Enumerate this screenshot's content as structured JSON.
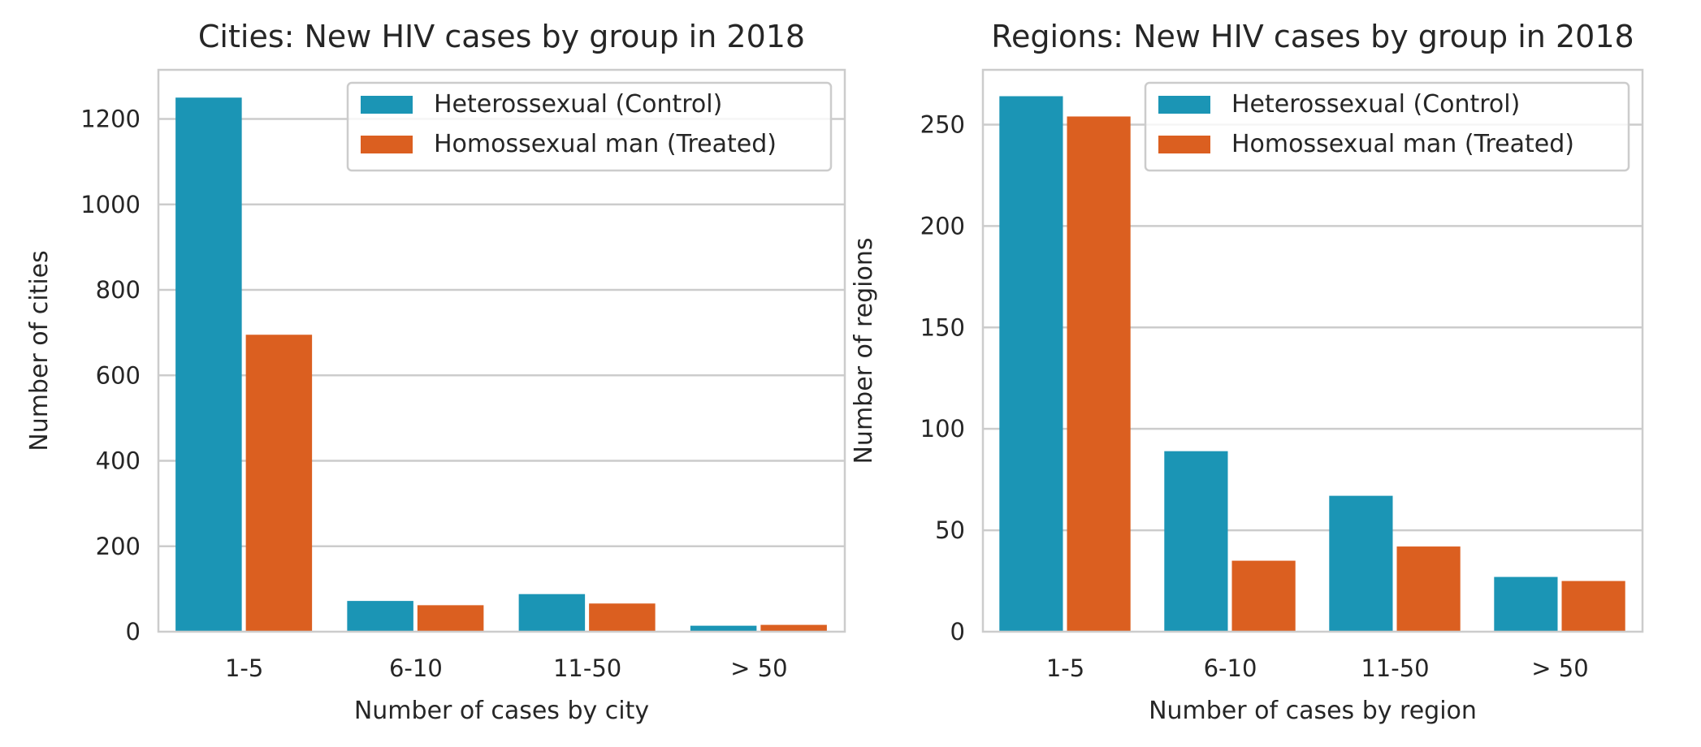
{
  "colors": {
    "control": "#1b95b5",
    "treated": "#db5f20",
    "grid": "#cccccc",
    "spine": "#cccccc",
    "text": "#262626"
  },
  "chart_data": [
    {
      "type": "bar",
      "title": "Cities: New HIV cases by group in 2018",
      "xlabel": "Number of cases by city",
      "ylabel": "Number of cities",
      "categories": [
        "1-5",
        "6-10",
        "11-50",
        "> 50"
      ],
      "yticks": [
        0,
        200,
        400,
        600,
        800,
        1000,
        1200
      ],
      "ylim": [
        0,
        1315
      ],
      "grid": "horizontal",
      "legend_position": "top-right",
      "series": [
        {
          "name": "Heterossexual (Control)",
          "values": [
            1250,
            72,
            88,
            14
          ]
        },
        {
          "name": "Homossexual man (Treated)",
          "values": [
            695,
            62,
            66,
            16
          ]
        }
      ]
    },
    {
      "type": "bar",
      "title": "Regions: New HIV cases by group in 2018",
      "xlabel": "Number of cases by region",
      "ylabel": "Number of regions",
      "categories": [
        "1-5",
        "6-10",
        "11-50",
        "> 50"
      ],
      "yticks": [
        0,
        50,
        100,
        150,
        200,
        250
      ],
      "ylim": [
        0,
        277
      ],
      "grid": "horizontal",
      "legend_position": "top-right",
      "series": [
        {
          "name": "Heterossexual (Control)",
          "values": [
            264,
            89,
            67,
            27
          ]
        },
        {
          "name": "Homossexual man (Treated)",
          "values": [
            254,
            35,
            42,
            25
          ]
        }
      ]
    }
  ]
}
